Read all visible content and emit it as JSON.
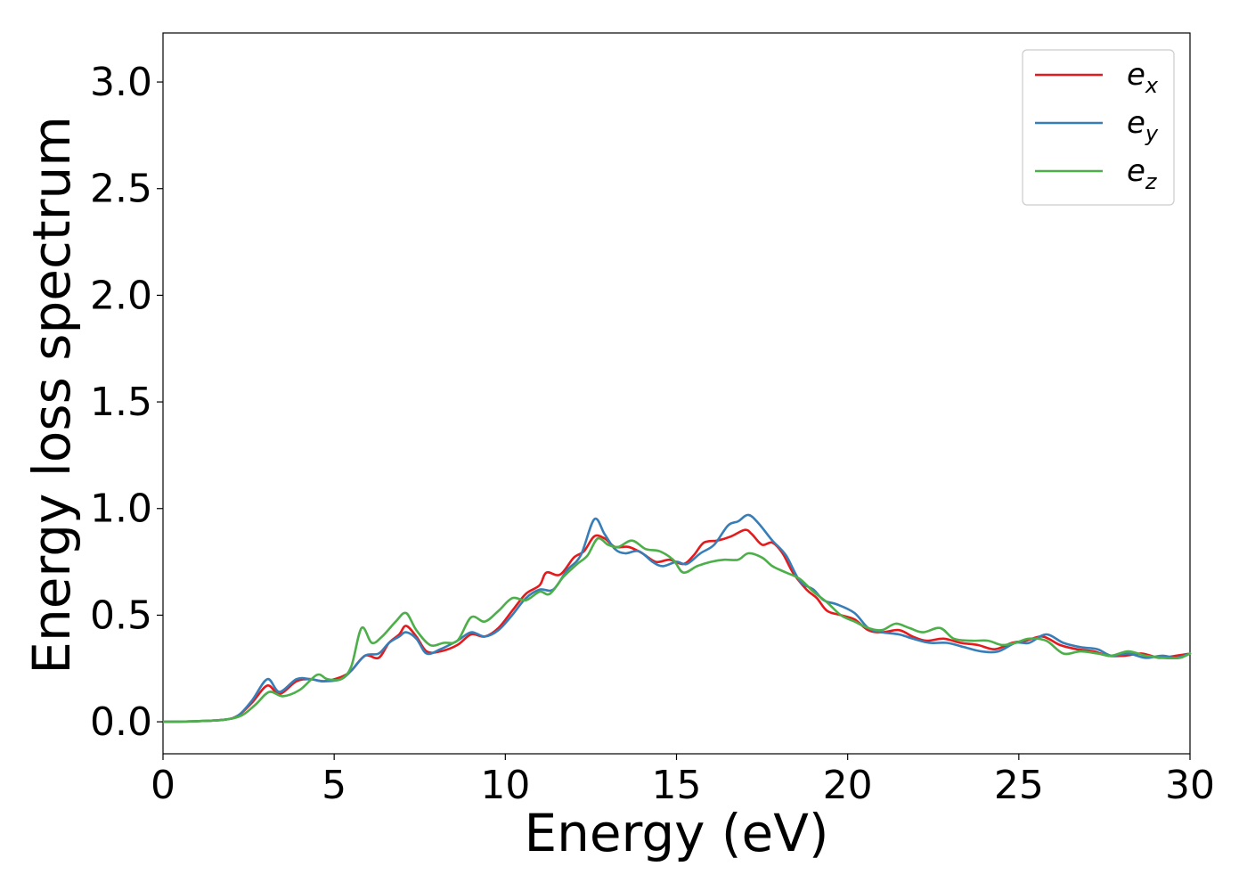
{
  "chart_data": {
    "type": "line",
    "title": "",
    "xlabel": "Energy (eV)",
    "ylabel": "Energy loss spectrum",
    "xlim": [
      0,
      30
    ],
    "ylim": [
      -0.15,
      3.23
    ],
    "xticks": [
      0,
      5,
      10,
      15,
      20,
      25,
      30
    ],
    "xtick_labels": [
      "0",
      "5",
      "10",
      "15",
      "20",
      "25",
      "30"
    ],
    "yticks": [
      0.0,
      0.5,
      1.0,
      1.5,
      2.0,
      2.5,
      3.0
    ],
    "ytick_labels": [
      "0.0",
      "0.5",
      "1.0",
      "1.5",
      "2.0",
      "2.5",
      "3.0"
    ],
    "grid": false,
    "legend_position": "top-right",
    "series": [
      {
        "name": "e_x",
        "legend_base": "e",
        "legend_sub": "x",
        "color": "#e41a1c",
        "points": [
          [
            0,
            0
          ],
          [
            1,
            0.003
          ],
          [
            1.8,
            0.01
          ],
          [
            2.2,
            0.03
          ],
          [
            2.6,
            0.09
          ],
          [
            3.05,
            0.17
          ],
          [
            3.4,
            0.13
          ],
          [
            3.9,
            0.19
          ],
          [
            4.3,
            0.2
          ],
          [
            4.7,
            0.19
          ],
          [
            5.2,
            0.21
          ],
          [
            5.5,
            0.24
          ],
          [
            5.9,
            0.31
          ],
          [
            6.3,
            0.3
          ],
          [
            6.6,
            0.37
          ],
          [
            6.9,
            0.41
          ],
          [
            7.1,
            0.45
          ],
          [
            7.4,
            0.4
          ],
          [
            7.7,
            0.33
          ],
          [
            8.1,
            0.33
          ],
          [
            8.6,
            0.36
          ],
          [
            9.0,
            0.41
          ],
          [
            9.4,
            0.4
          ],
          [
            9.8,
            0.44
          ],
          [
            10.2,
            0.52
          ],
          [
            10.6,
            0.6
          ],
          [
            11.0,
            0.64
          ],
          [
            11.2,
            0.7
          ],
          [
            11.6,
            0.69
          ],
          [
            12.0,
            0.77
          ],
          [
            12.3,
            0.8
          ],
          [
            12.6,
            0.87
          ],
          [
            12.9,
            0.86
          ],
          [
            13.2,
            0.82
          ],
          [
            13.6,
            0.82
          ],
          [
            14.0,
            0.79
          ],
          [
            14.4,
            0.75
          ],
          [
            14.8,
            0.76
          ],
          [
            15.2,
            0.74
          ],
          [
            15.5,
            0.78
          ],
          [
            15.8,
            0.84
          ],
          [
            16.2,
            0.85
          ],
          [
            16.6,
            0.87
          ],
          [
            17.0,
            0.9
          ],
          [
            17.2,
            0.88
          ],
          [
            17.5,
            0.83
          ],
          [
            17.8,
            0.84
          ],
          [
            18.1,
            0.79
          ],
          [
            18.4,
            0.7
          ],
          [
            18.8,
            0.62
          ],
          [
            19.1,
            0.58
          ],
          [
            19.4,
            0.52
          ],
          [
            19.8,
            0.5
          ],
          [
            20.2,
            0.48
          ],
          [
            20.6,
            0.43
          ],
          [
            21.0,
            0.42
          ],
          [
            21.5,
            0.43
          ],
          [
            21.9,
            0.4
          ],
          [
            22.3,
            0.38
          ],
          [
            22.8,
            0.39
          ],
          [
            23.3,
            0.37
          ],
          [
            23.8,
            0.36
          ],
          [
            24.3,
            0.34
          ],
          [
            24.8,
            0.37
          ],
          [
            25.2,
            0.38
          ],
          [
            25.7,
            0.4
          ],
          [
            26.2,
            0.36
          ],
          [
            26.7,
            0.34
          ],
          [
            27.2,
            0.33
          ],
          [
            27.6,
            0.31
          ],
          [
            28.1,
            0.31
          ],
          [
            28.6,
            0.32
          ],
          [
            29.1,
            0.3
          ],
          [
            29.6,
            0.31
          ],
          [
            30,
            0.32
          ]
        ]
      },
      {
        "name": "e_y",
        "legend_base": "e",
        "legend_sub": "y",
        "color": "#377eb8",
        "points": [
          [
            0,
            0
          ],
          [
            1,
            0.003
          ],
          [
            1.8,
            0.01
          ],
          [
            2.2,
            0.03
          ],
          [
            2.6,
            0.1
          ],
          [
            3.05,
            0.2
          ],
          [
            3.4,
            0.14
          ],
          [
            3.9,
            0.2
          ],
          [
            4.3,
            0.2
          ],
          [
            4.7,
            0.19
          ],
          [
            5.2,
            0.2
          ],
          [
            5.5,
            0.24
          ],
          [
            5.9,
            0.31
          ],
          [
            6.3,
            0.32
          ],
          [
            6.6,
            0.37
          ],
          [
            6.9,
            0.4
          ],
          [
            7.1,
            0.42
          ],
          [
            7.4,
            0.39
          ],
          [
            7.7,
            0.32
          ],
          [
            8.1,
            0.34
          ],
          [
            8.6,
            0.38
          ],
          [
            9.0,
            0.42
          ],
          [
            9.4,
            0.4
          ],
          [
            9.8,
            0.43
          ],
          [
            10.2,
            0.5
          ],
          [
            10.6,
            0.58
          ],
          [
            11.0,
            0.62
          ],
          [
            11.4,
            0.62
          ],
          [
            11.8,
            0.71
          ],
          [
            12.2,
            0.78
          ],
          [
            12.6,
            0.95
          ],
          [
            12.9,
            0.88
          ],
          [
            13.2,
            0.81
          ],
          [
            13.5,
            0.79
          ],
          [
            13.9,
            0.8
          ],
          [
            14.3,
            0.75
          ],
          [
            14.6,
            0.73
          ],
          [
            15.0,
            0.75
          ],
          [
            15.3,
            0.74
          ],
          [
            15.7,
            0.79
          ],
          [
            16.1,
            0.83
          ],
          [
            16.5,
            0.92
          ],
          [
            16.8,
            0.94
          ],
          [
            17.1,
            0.97
          ],
          [
            17.4,
            0.93
          ],
          [
            17.8,
            0.85
          ],
          [
            18.2,
            0.78
          ],
          [
            18.6,
            0.66
          ],
          [
            19.0,
            0.62
          ],
          [
            19.3,
            0.57
          ],
          [
            19.7,
            0.55
          ],
          [
            20.2,
            0.51
          ],
          [
            20.6,
            0.44
          ],
          [
            21.0,
            0.42
          ],
          [
            21.5,
            0.41
          ],
          [
            21.9,
            0.39
          ],
          [
            22.4,
            0.37
          ],
          [
            22.9,
            0.37
          ],
          [
            23.4,
            0.35
          ],
          [
            23.9,
            0.33
          ],
          [
            24.4,
            0.33
          ],
          [
            24.9,
            0.37
          ],
          [
            25.3,
            0.37
          ],
          [
            25.8,
            0.41
          ],
          [
            26.3,
            0.37
          ],
          [
            26.8,
            0.35
          ],
          [
            27.3,
            0.34
          ],
          [
            27.7,
            0.31
          ],
          [
            28.2,
            0.32
          ],
          [
            28.7,
            0.3
          ],
          [
            29.2,
            0.31
          ],
          [
            29.6,
            0.3
          ],
          [
            30,
            0.32
          ]
        ]
      },
      {
        "name": "e_z",
        "legend_base": "e",
        "legend_sub": "z",
        "color": "#4daf4a",
        "points": [
          [
            0,
            0
          ],
          [
            1,
            0.003
          ],
          [
            1.8,
            0.01
          ],
          [
            2.3,
            0.03
          ],
          [
            2.7,
            0.08
          ],
          [
            3.1,
            0.14
          ],
          [
            3.5,
            0.12
          ],
          [
            4.0,
            0.15
          ],
          [
            4.5,
            0.22
          ],
          [
            4.8,
            0.2
          ],
          [
            5.2,
            0.2
          ],
          [
            5.5,
            0.26
          ],
          [
            5.8,
            0.44
          ],
          [
            6.1,
            0.37
          ],
          [
            6.4,
            0.4
          ],
          [
            6.8,
            0.47
          ],
          [
            7.1,
            0.51
          ],
          [
            7.4,
            0.43
          ],
          [
            7.8,
            0.36
          ],
          [
            8.2,
            0.37
          ],
          [
            8.6,
            0.38
          ],
          [
            9.0,
            0.49
          ],
          [
            9.4,
            0.47
          ],
          [
            9.8,
            0.52
          ],
          [
            10.2,
            0.58
          ],
          [
            10.6,
            0.57
          ],
          [
            11.0,
            0.61
          ],
          [
            11.3,
            0.6
          ],
          [
            11.7,
            0.68
          ],
          [
            12.1,
            0.74
          ],
          [
            12.4,
            0.78
          ],
          [
            12.7,
            0.86
          ],
          [
            13.0,
            0.83
          ],
          [
            13.3,
            0.82
          ],
          [
            13.7,
            0.85
          ],
          [
            14.1,
            0.81
          ],
          [
            14.5,
            0.8
          ],
          [
            14.9,
            0.76
          ],
          [
            15.2,
            0.7
          ],
          [
            15.6,
            0.73
          ],
          [
            16.0,
            0.75
          ],
          [
            16.4,
            0.76
          ],
          [
            16.8,
            0.76
          ],
          [
            17.1,
            0.79
          ],
          [
            17.5,
            0.77
          ],
          [
            17.8,
            0.73
          ],
          [
            18.2,
            0.7
          ],
          [
            18.6,
            0.67
          ],
          [
            19.0,
            0.61
          ],
          [
            19.4,
            0.56
          ],
          [
            19.8,
            0.5
          ],
          [
            20.2,
            0.47
          ],
          [
            20.6,
            0.44
          ],
          [
            21.0,
            0.43
          ],
          [
            21.4,
            0.46
          ],
          [
            21.8,
            0.44
          ],
          [
            22.2,
            0.42
          ],
          [
            22.7,
            0.44
          ],
          [
            23.1,
            0.39
          ],
          [
            23.6,
            0.38
          ],
          [
            24.1,
            0.38
          ],
          [
            24.5,
            0.36
          ],
          [
            24.9,
            0.37
          ],
          [
            25.3,
            0.39
          ],
          [
            25.8,
            0.38
          ],
          [
            26.3,
            0.32
          ],
          [
            26.8,
            0.33
          ],
          [
            27.3,
            0.32
          ],
          [
            27.7,
            0.31
          ],
          [
            28.2,
            0.33
          ],
          [
            28.7,
            0.31
          ],
          [
            29.2,
            0.3
          ],
          [
            29.7,
            0.3
          ],
          [
            30,
            0.32
          ]
        ]
      }
    ]
  }
}
